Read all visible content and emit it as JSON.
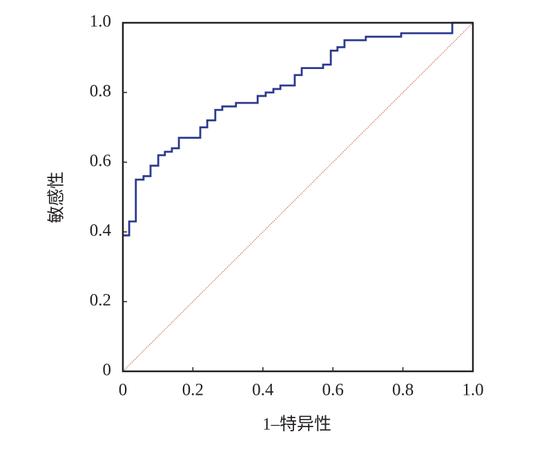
{
  "chart_data": {
    "type": "step_line",
    "x_label": "1–特异性",
    "y_label": "敏感性",
    "xlim": [
      0,
      1
    ],
    "ylim": [
      0,
      1
    ],
    "xticks": [
      0,
      0.2,
      0.4,
      0.6,
      0.8,
      {
        "value": 1,
        "label": "1.0"
      }
    ],
    "yticks": [
      0,
      0.2,
      0.4,
      0.6,
      0.8,
      {
        "value": 1,
        "label": "1.0"
      }
    ],
    "grid": false,
    "series": [
      {
        "color": "#2b3990",
        "x": [
          0,
          0.018,
          0.018,
          0.037,
          0.037,
          0.059,
          0.059,
          0.079,
          0.079,
          0.101,
          0.101,
          0.12,
          0.12,
          0.14,
          0.14,
          0.16,
          0.16,
          0.221,
          0.221,
          0.241,
          0.241,
          0.264,
          0.264,
          0.284,
          0.284,
          0.323,
          0.323,
          0.385,
          0.385,
          0.408,
          0.408,
          0.43,
          0.43,
          0.45,
          0.45,
          0.491,
          0.491,
          0.511,
          0.511,
          0.572,
          0.572,
          0.594,
          0.594,
          0.613,
          0.613,
          0.633,
          0.633,
          0.694,
          0.694,
          0.795,
          0.795,
          0.941,
          0.941,
          1
        ],
        "values": [
          0.39,
          0.39,
          0.43,
          0.43,
          0.55,
          0.55,
          0.56,
          0.56,
          0.59,
          0.59,
          0.62,
          0.62,
          0.63,
          0.63,
          0.64,
          0.64,
          0.67,
          0.67,
          0.7,
          0.7,
          0.72,
          0.72,
          0.75,
          0.75,
          0.76,
          0.76,
          0.77,
          0.77,
          0.79,
          0.79,
          0.8,
          0.8,
          0.81,
          0.81,
          0.82,
          0.82,
          0.85,
          0.85,
          0.87,
          0.87,
          0.88,
          0.88,
          0.92,
          0.92,
          0.93,
          0.93,
          0.95,
          0.95,
          0.96,
          0.96,
          0.97,
          0.97,
          1,
          1
        ]
      },
      {
        "color": "#c0392b",
        "dashed": true,
        "x": [
          0,
          1
        ],
        "values": [
          0,
          1
        ]
      }
    ]
  }
}
